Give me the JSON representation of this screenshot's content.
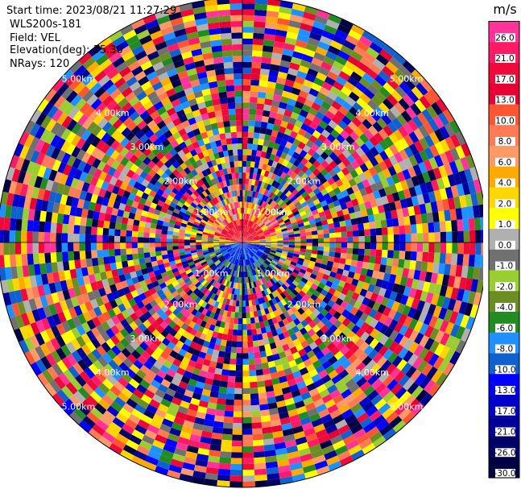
{
  "header": {
    "start_time": "Start time: 2023/08/21 11:27:29",
    "instrument": "WLS200s-181",
    "field": "Field: VEL",
    "elevation": "Elevation(deg): 35.30",
    "nrays": "NRays: 120"
  },
  "chart_data": {
    "type": "heatmap",
    "projection": "polar-ppi",
    "field": "VEL",
    "unit": "m/s",
    "rays": 120,
    "range_ring_labels": [
      "1.00km",
      "2.00km",
      "3.00km",
      "4.00km",
      "5.00km"
    ],
    "colorbar": {
      "title": "m/s",
      "ticks": [
        "26.0",
        "21.0",
        "17.0",
        "13.0",
        "10.0",
        "8.0",
        "6.0",
        "4.0",
        "2.0",
        "1.0",
        "0.0",
        "-1.0",
        "-2.0",
        "-4.0",
        "-6.0",
        "-8.0",
        "-10.0",
        "-13.0",
        "-17.0",
        "-21.0",
        "-26.0",
        "-30.0"
      ],
      "colors": [
        "#ff3399",
        "#ff1a66",
        "#ee0a3a",
        "#e60033",
        "#ff5533",
        "#ff7a55",
        "#ff9966",
        "#ffaa00",
        "#ffd700",
        "#ffff00",
        "#b0b0b0",
        "#707070",
        "#9acd32",
        "#6b8e23",
        "#228b22",
        "#1e90ff",
        "#1060d0",
        "#0000ff",
        "#0000cc",
        "#000099",
        "#000066",
        "#000044"
      ]
    }
  }
}
